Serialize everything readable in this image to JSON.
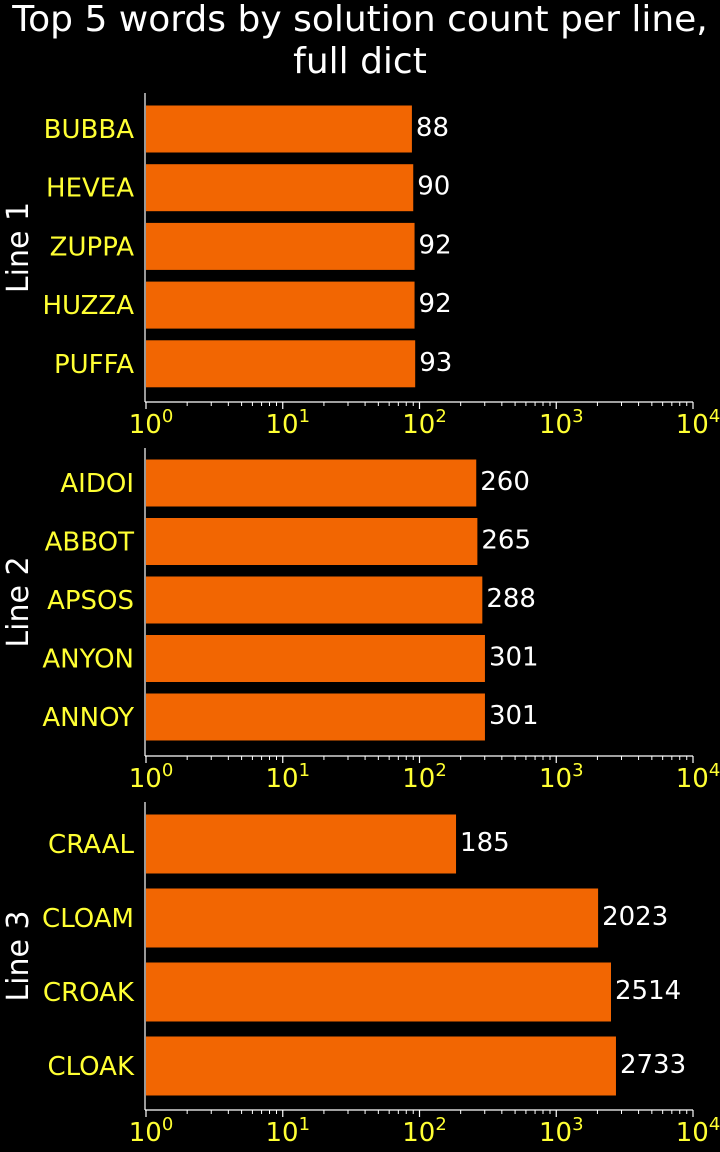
{
  "title": {
    "line1": "Top 5 words by solution count per line,",
    "line2": "full dict"
  },
  "colors": {
    "background": "#000000",
    "bar": "#f26602",
    "category_text": "#ffff33",
    "tick_text": "#ffff33",
    "value_text": "#ffffff",
    "axis": "#ffffff"
  },
  "chart_data": [
    {
      "type": "bar",
      "orientation": "horizontal",
      "ylabel": "Line 1",
      "xscale": "log",
      "xlim": [
        1,
        10000
      ],
      "xticks": [
        {
          "base": "10",
          "exp": "0"
        },
        {
          "base": "10",
          "exp": "1"
        },
        {
          "base": "10",
          "exp": "2"
        },
        {
          "base": "10",
          "exp": "3"
        },
        {
          "base": "10",
          "exp": "4"
        }
      ],
      "categories": [
        "BUBBA",
        "HEVEA",
        "ZUPPA",
        "HUZZA",
        "PUFFA"
      ],
      "values": [
        88,
        90,
        92,
        92,
        93
      ],
      "value_labels": [
        "88",
        "90",
        "92",
        "92",
        "93"
      ]
    },
    {
      "type": "bar",
      "orientation": "horizontal",
      "ylabel": "Line 2",
      "xscale": "log",
      "xlim": [
        1,
        10000
      ],
      "xticks": [
        {
          "base": "10",
          "exp": "0"
        },
        {
          "base": "10",
          "exp": "1"
        },
        {
          "base": "10",
          "exp": "2"
        },
        {
          "base": "10",
          "exp": "3"
        },
        {
          "base": "10",
          "exp": "4"
        }
      ],
      "categories": [
        "AIDOI",
        "ABBOT",
        "APSOS",
        "ANYON",
        "ANNOY"
      ],
      "values": [
        260,
        265,
        288,
        301,
        301
      ],
      "value_labels": [
        "260",
        "265",
        "288",
        "301",
        "301"
      ]
    },
    {
      "type": "bar",
      "orientation": "horizontal",
      "ylabel": "Line 3",
      "xscale": "log",
      "xlim": [
        1,
        10000
      ],
      "xticks": [
        {
          "base": "10",
          "exp": "0"
        },
        {
          "base": "10",
          "exp": "1"
        },
        {
          "base": "10",
          "exp": "2"
        },
        {
          "base": "10",
          "exp": "3"
        },
        {
          "base": "10",
          "exp": "4"
        }
      ],
      "categories": [
        "CRAAL",
        "CLOAM",
        "CROAK",
        "CLOAK"
      ],
      "values": [
        185,
        2023,
        2514,
        2733
      ],
      "value_labels": [
        "185",
        "2023",
        "2514",
        "2733"
      ]
    }
  ]
}
